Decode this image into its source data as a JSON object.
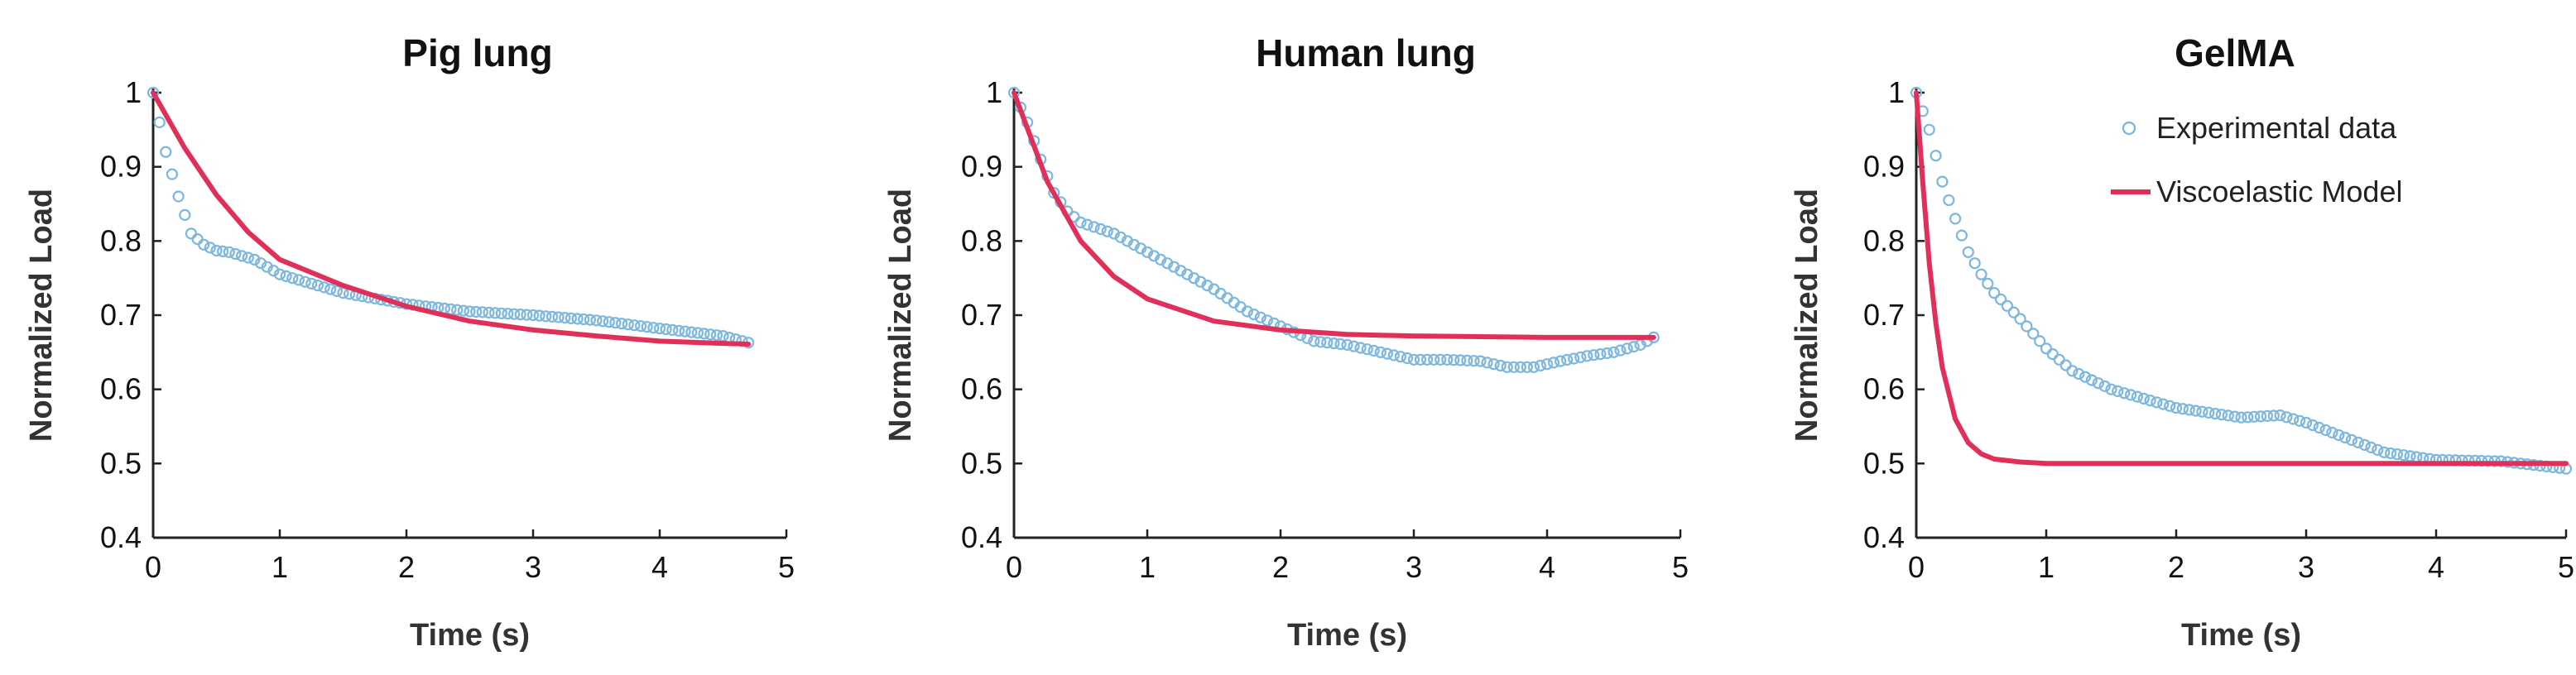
{
  "chart_data": [
    {
      "type": "scatter",
      "title": "Pig lung",
      "xlabel": "Time (s)",
      "ylabel": "Normalized Load",
      "xlim": [
        0,
        5
      ],
      "ylim": [
        0.4,
        1
      ],
      "xticks": [
        "0",
        "1",
        "2",
        "3",
        "4",
        "5"
      ],
      "yticks": [
        "0.4",
        "0.5",
        "0.6",
        "0.7",
        "0.8",
        "0.9",
        "1"
      ],
      "grid": false,
      "colors": {
        "data": "#7db7dd",
        "model": "#e0305a"
      },
      "series": [
        {
          "name": "Experimental data",
          "style": "markers",
          "x": [
            0,
            0.1,
            0.2,
            0.3,
            0.4,
            0.5,
            0.6,
            0.8,
            1.0,
            1.2,
            1.5,
            2.0,
            2.5,
            3.0,
            3.5,
            4.0,
            4.5,
            4.7
          ],
          "y": [
            1.0,
            0.92,
            0.86,
            0.81,
            0.795,
            0.787,
            0.785,
            0.775,
            0.755,
            0.745,
            0.73,
            0.715,
            0.705,
            0.7,
            0.693,
            0.682,
            0.672,
            0.663
          ]
        },
        {
          "name": "Viscoelastic Model",
          "style": "line",
          "x": [
            0,
            0.25,
            0.5,
            0.75,
            1.0,
            1.5,
            2.0,
            2.5,
            3.0,
            3.5,
            4.0,
            4.5,
            4.7
          ],
          "y": [
            1.0,
            0.925,
            0.862,
            0.812,
            0.775,
            0.74,
            0.712,
            0.692,
            0.68,
            0.672,
            0.665,
            0.662,
            0.661
          ]
        }
      ]
    },
    {
      "type": "scatter",
      "title": "Human lung",
      "xlabel": "Time (s)",
      "ylabel": "Normalized Load",
      "xlim": [
        0,
        5
      ],
      "ylim": [
        0.4,
        1
      ],
      "xticks": [
        "0",
        "1",
        "2",
        "3",
        "4",
        "5"
      ],
      "yticks": [
        "0.4",
        "0.5",
        "0.6",
        "0.7",
        "0.8",
        "0.9",
        "1"
      ],
      "grid": false,
      "colors": {
        "data": "#7db7dd",
        "model": "#e0305a"
      },
      "series": [
        {
          "name": "Experimental data",
          "style": "markers",
          "x": [
            0,
            0.1,
            0.2,
            0.3,
            0.4,
            0.5,
            0.75,
            1.0,
            1.25,
            1.5,
            1.75,
            2.0,
            2.25,
            2.5,
            2.75,
            3.0,
            3.25,
            3.5,
            3.7,
            3.9,
            4.1,
            4.3,
            4.5,
            4.7,
            4.8
          ],
          "y": [
            1.0,
            0.96,
            0.91,
            0.865,
            0.84,
            0.825,
            0.81,
            0.785,
            0.76,
            0.735,
            0.705,
            0.685,
            0.665,
            0.66,
            0.65,
            0.64,
            0.64,
            0.638,
            0.63,
            0.63,
            0.638,
            0.645,
            0.65,
            0.66,
            0.67
          ]
        },
        {
          "name": "Viscoelastic Model",
          "style": "line",
          "x": [
            0,
            0.25,
            0.5,
            0.75,
            1.0,
            1.5,
            2.0,
            2.5,
            3.0,
            3.5,
            4.0,
            4.5,
            4.8
          ],
          "y": [
            1.0,
            0.88,
            0.8,
            0.752,
            0.722,
            0.692,
            0.68,
            0.674,
            0.672,
            0.671,
            0.67,
            0.67,
            0.67
          ]
        }
      ]
    },
    {
      "type": "scatter",
      "title": "GelMA",
      "xlabel": "Time (s)",
      "ylabel": "Normalized Load",
      "xlim": [
        0,
        5
      ],
      "ylim": [
        0.4,
        1
      ],
      "xticks": [
        "0",
        "1",
        "2",
        "3",
        "4",
        "5"
      ],
      "yticks": [
        "0.4",
        "0.5",
        "0.6",
        "0.7",
        "0.8",
        "0.9",
        "1"
      ],
      "grid": false,
      "legend": "top-right",
      "colors": {
        "data": "#7db7dd",
        "model": "#e0305a"
      },
      "series": [
        {
          "name": "Experimental data",
          "style": "markers",
          "x": [
            0,
            0.1,
            0.2,
            0.3,
            0.4,
            0.5,
            0.6,
            0.8,
            1.0,
            1.2,
            1.5,
            2.0,
            2.5,
            2.8,
            3.0,
            3.3,
            3.6,
            4.0,
            4.5,
            5.0
          ],
          "y": [
            1.0,
            0.95,
            0.88,
            0.83,
            0.785,
            0.755,
            0.73,
            0.695,
            0.655,
            0.625,
            0.6,
            0.575,
            0.562,
            0.565,
            0.555,
            0.535,
            0.515,
            0.505,
            0.503,
            0.493
          ]
        },
        {
          "name": "Viscoelastic Model",
          "style": "line",
          "x": [
            0,
            0.05,
            0.1,
            0.15,
            0.2,
            0.3,
            0.4,
            0.5,
            0.6,
            0.8,
            1.0,
            2.0,
            3.0,
            4.0,
            5.0
          ],
          "y": [
            1.0,
            0.88,
            0.77,
            0.69,
            0.63,
            0.56,
            0.528,
            0.513,
            0.506,
            0.502,
            0.5,
            0.5,
            0.5,
            0.5,
            0.5
          ]
        }
      ]
    }
  ]
}
